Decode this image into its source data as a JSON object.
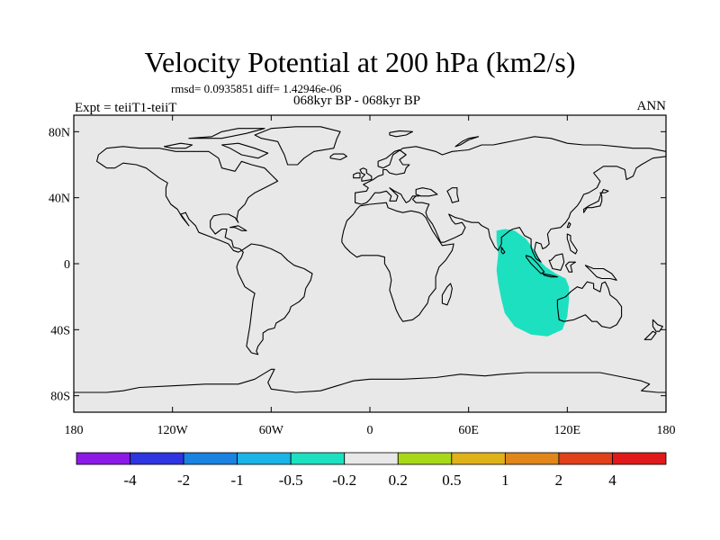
{
  "title": "Velocity Potential at 200 hPa (km2/s)",
  "stats": "rmsd= 0.0935851 diff= 1.42946e-06",
  "left_label": "Expt = teiiT1-teiiT",
  "center_label": "068kyr BP - 068kyr BP",
  "right_label": "ANN",
  "map": {
    "lon_range": [
      -180,
      180
    ],
    "lat_range": [
      -90,
      90
    ],
    "background": "#e8e8e8",
    "x_ticks": [
      {
        "lon": -180,
        "label": "180"
      },
      {
        "lon": -120,
        "label": "120W"
      },
      {
        "lon": -60,
        "label": "60W"
      },
      {
        "lon": 0,
        "label": "0"
      },
      {
        "lon": 60,
        "label": "60E"
      },
      {
        "lon": 120,
        "label": "120E"
      },
      {
        "lon": 180,
        "label": "180"
      }
    ],
    "y_ticks": [
      {
        "lat": 80,
        "label": "80N"
      },
      {
        "lat": 40,
        "label": "40N"
      },
      {
        "lat": 0,
        "label": "0"
      },
      {
        "lat": -40,
        "label": "40S"
      },
      {
        "lat": -80,
        "label": "80S"
      }
    ],
    "anomaly_region": {
      "color": "#1de0c0",
      "level": "-0.5 to -0.2",
      "outline_lonlat": [
        [
          77,
          20
        ],
        [
          82,
          21
        ],
        [
          88,
          20
        ],
        [
          95,
          15
        ],
        [
          100,
          8
        ],
        [
          103,
          2
        ],
        [
          107,
          -2
        ],
        [
          113,
          -6
        ],
        [
          119,
          -9
        ],
        [
          121,
          -14
        ],
        [
          121,
          -22
        ],
        [
          120,
          -32
        ],
        [
          117,
          -40
        ],
        [
          108,
          -44
        ],
        [
          98,
          -43
        ],
        [
          88,
          -38
        ],
        [
          82,
          -30
        ],
        [
          80,
          -22
        ],
        [
          78,
          -12
        ],
        [
          77,
          -4
        ],
        [
          78,
          6
        ],
        [
          77,
          14
        ]
      ]
    }
  },
  "colorbar": {
    "colors": [
      "#8b1ae6",
      "#2f35e0",
      "#1a82e0",
      "#1ab4e6",
      "#1de0c0",
      "#e8e8e8",
      "#a8d818",
      "#e0b21a",
      "#e0861a",
      "#e0401a",
      "#e01a1a"
    ],
    "labels": [
      "-4",
      "-2",
      "-1",
      "-0.5",
      "-0.2",
      "0.2",
      "0.5",
      "1",
      "2",
      "4"
    ]
  }
}
